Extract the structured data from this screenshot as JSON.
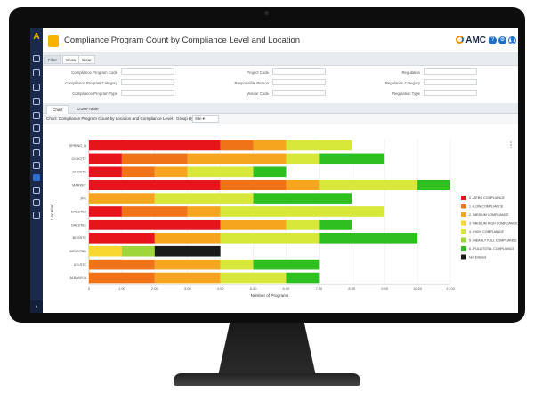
{
  "header": {
    "title": "Compliance Program Count by Compliance Level and Location",
    "brand": "AMC",
    "help_icon": "?",
    "settings_icon": "⚙",
    "user_icon": "👤"
  },
  "sidebar": {
    "logo": "A",
    "icons": [
      "search-icon",
      "star-icon",
      "document-icon",
      "grid-icon",
      "list-icon",
      "list-icon",
      "book-icon",
      "folder-icon",
      "tool-icon",
      "target-icon",
      "cursor-icon",
      "bulb-icon",
      "gear-icon"
    ],
    "expand_label": "›"
  },
  "toolbar": {
    "filter": "Filter",
    "show": "Show",
    "clear": "Clear"
  },
  "filters": {
    "col1": [
      "Compliance Program Code",
      "Compliance Program Category",
      "Compliance Program Type"
    ],
    "col2": [
      "Project Code",
      "Responsible Person",
      "Vendor Code"
    ],
    "col3": [
      "Regulation",
      "Regulation Category",
      "Regulation Type"
    ]
  },
  "tabs": [
    "Chart",
    "Cross-Table"
  ],
  "chart_header": {
    "title": "Chart: Compliance Program Count by Location and Compliance Level",
    "group_by_label": "Group By:",
    "group_by_value": "Site"
  },
  "chart_data": {
    "type": "bar",
    "orientation": "horizontal",
    "stacked": true,
    "categories": [
      "SPRING_N",
      "OLDCITY",
      "SHOSTE",
      "MARKET",
      "JFK",
      "DALSTE2",
      "DALSTE1",
      "BOSSTE",
      "BEDFORD",
      "ATLSTE",
      "ALBANY-N"
    ],
    "series": [
      {
        "name": "0 - ZERO COMPLIANCE",
        "color": "#e8141b",
        "values": [
          4,
          1,
          1,
          4,
          0,
          1,
          4,
          2,
          0,
          0,
          0
        ]
      },
      {
        "name": "1 - LOW COMPLIANCE",
        "color": "#f07318",
        "values": [
          1,
          2,
          1,
          2,
          0,
          2,
          0,
          0,
          0,
          2,
          2
        ]
      },
      {
        "name": "2 - MEDIUM COMPLIANCE",
        "color": "#f6a61e",
        "values": [
          1,
          3,
          1,
          1,
          2,
          1,
          2,
          2,
          0,
          2,
          2
        ]
      },
      {
        "name": "3 - MEDIUM HIGH COMPLIANCE",
        "color": "#f7d730",
        "values": [
          0,
          0,
          0,
          0,
          0,
          0,
          0,
          0,
          1,
          0,
          0
        ]
      },
      {
        "name": "4 - HIGH COMPLIANCE",
        "color": "#d8e83a",
        "values": [
          2,
          1,
          2,
          3,
          3,
          5,
          1,
          3,
          0,
          1,
          2
        ]
      },
      {
        "name": "5 - NEARLY FULL COMPLIANCE",
        "color": "#9fd63a",
        "values": [
          0,
          0,
          0,
          0,
          0,
          0,
          0,
          0,
          1,
          0,
          0
        ]
      },
      {
        "name": "6 - FULL/TOTAL COMPLIANCE",
        "color": "#2fbf20",
        "values": [
          0,
          2,
          1,
          1,
          3,
          0,
          1,
          3,
          0,
          2,
          1
        ]
      },
      {
        "name": "Not Entered",
        "color": "#1a1a1a",
        "values": [
          0,
          0,
          0,
          0,
          0,
          0,
          0,
          0,
          2,
          0,
          0
        ]
      }
    ],
    "xlabel": "Number of Programs",
    "ylabel": "Location",
    "xlim": [
      0,
      11
    ],
    "xticks": [
      "0",
      "1.00",
      "2.00",
      "3.00",
      "4.00",
      "5.00",
      "6.00",
      "7.00",
      "8.00",
      "9.00",
      "10.00",
      "11.00"
    ],
    "grid": true,
    "legend_position": "right"
  },
  "colors": {
    "sidebar": "#1b2a4a",
    "accent": "#f5b400",
    "brand_blue": "#1f6fc5"
  }
}
